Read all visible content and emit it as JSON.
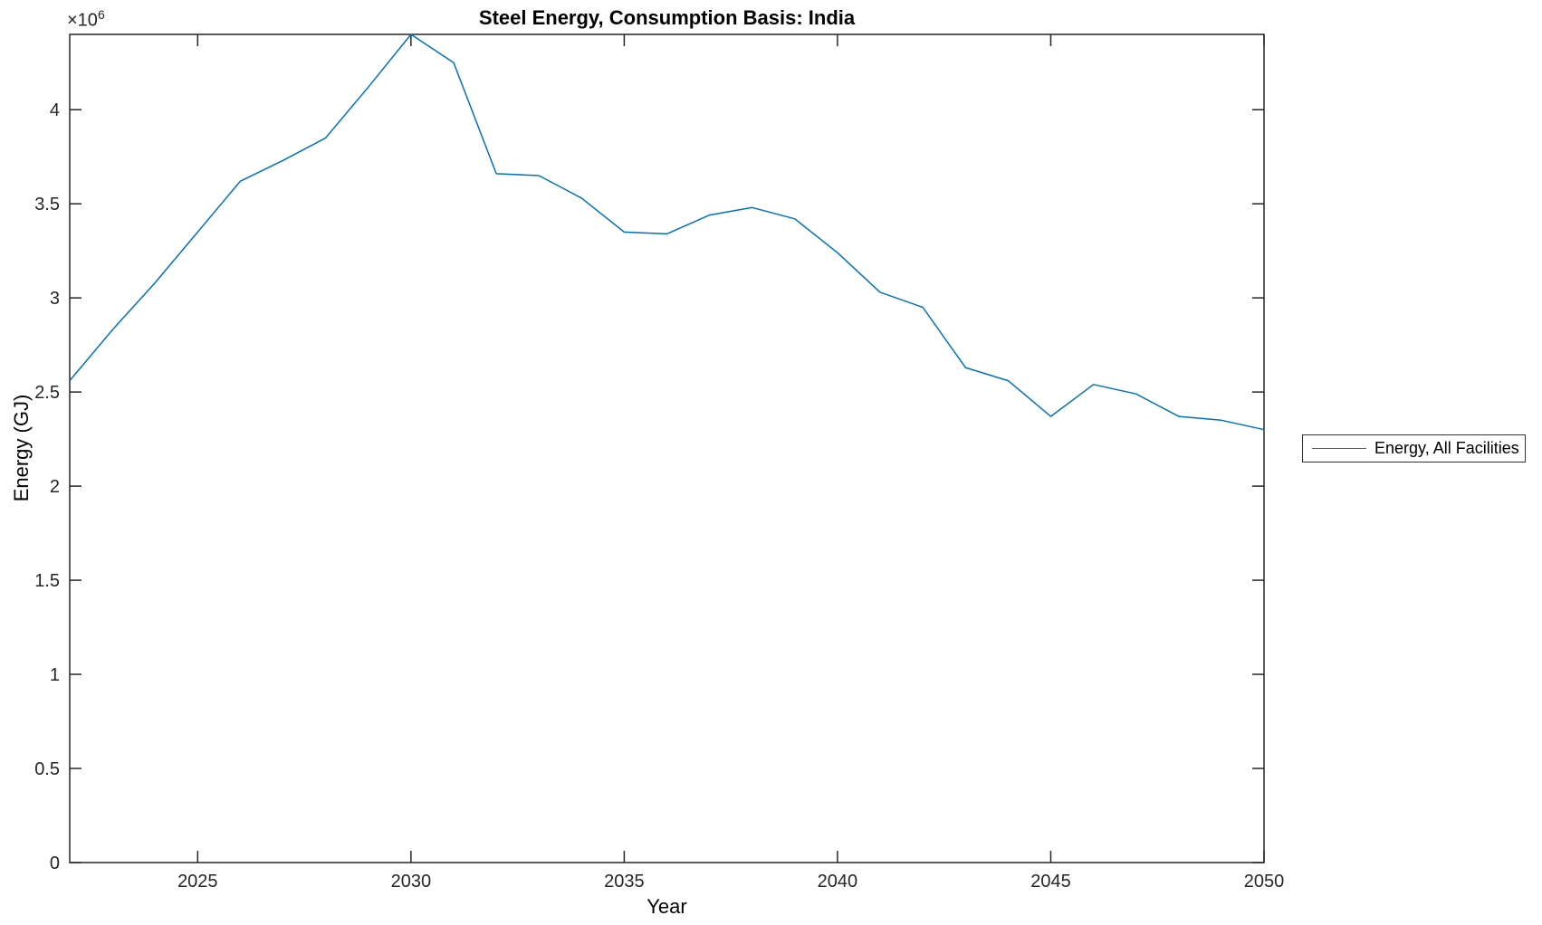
{
  "chart_data": {
    "type": "line",
    "title": "Steel Energy, Consumption Basis: India",
    "xlabel": "Year",
    "ylabel": "Energy (GJ)",
    "y_exponent_base": "×10",
    "y_exponent": "6",
    "grid": false,
    "legend_position": "right-outside",
    "axis_color": "#262626",
    "tick_label_color": "#262626",
    "background_color": "#ffffff",
    "xlim": [
      2022,
      2050
    ],
    "ylim": [
      0,
      4400000
    ],
    "x_ticks": [
      2025,
      2030,
      2035,
      2040,
      2045,
      2050
    ],
    "x_tick_labels": [
      "2025",
      "2030",
      "2035",
      "2040",
      "2045",
      "2050"
    ],
    "y_ticks": [
      0,
      500000,
      1000000,
      1500000,
      2000000,
      2500000,
      3000000,
      3500000,
      4000000
    ],
    "y_tick_labels": [
      "0",
      "0.5",
      "1",
      "1.5",
      "2",
      "2.5",
      "3",
      "3.5",
      "4"
    ],
    "series": [
      {
        "name": "Energy, All Facilities",
        "color": "#0072BD",
        "x": [
          2022,
          2023,
          2024,
          2025,
          2026,
          2027,
          2028,
          2029,
          2030,
          2031,
          2032,
          2033,
          2034,
          2035,
          2036,
          2037,
          2038,
          2039,
          2040,
          2041,
          2042,
          2043,
          2044,
          2045,
          2046,
          2047,
          2048,
          2049,
          2050
        ],
        "values": [
          2560000,
          2830000,
          3080000,
          3350000,
          3620000,
          3730000,
          3850000,
          4120000,
          4400000,
          4250000,
          3660000,
          3650000,
          3530000,
          3350000,
          3340000,
          3440000,
          3480000,
          3420000,
          3240000,
          3030000,
          2950000,
          2630000,
          2560000,
          2370000,
          2540000,
          2490000,
          2370000,
          2350000,
          2300000
        ]
      }
    ]
  }
}
